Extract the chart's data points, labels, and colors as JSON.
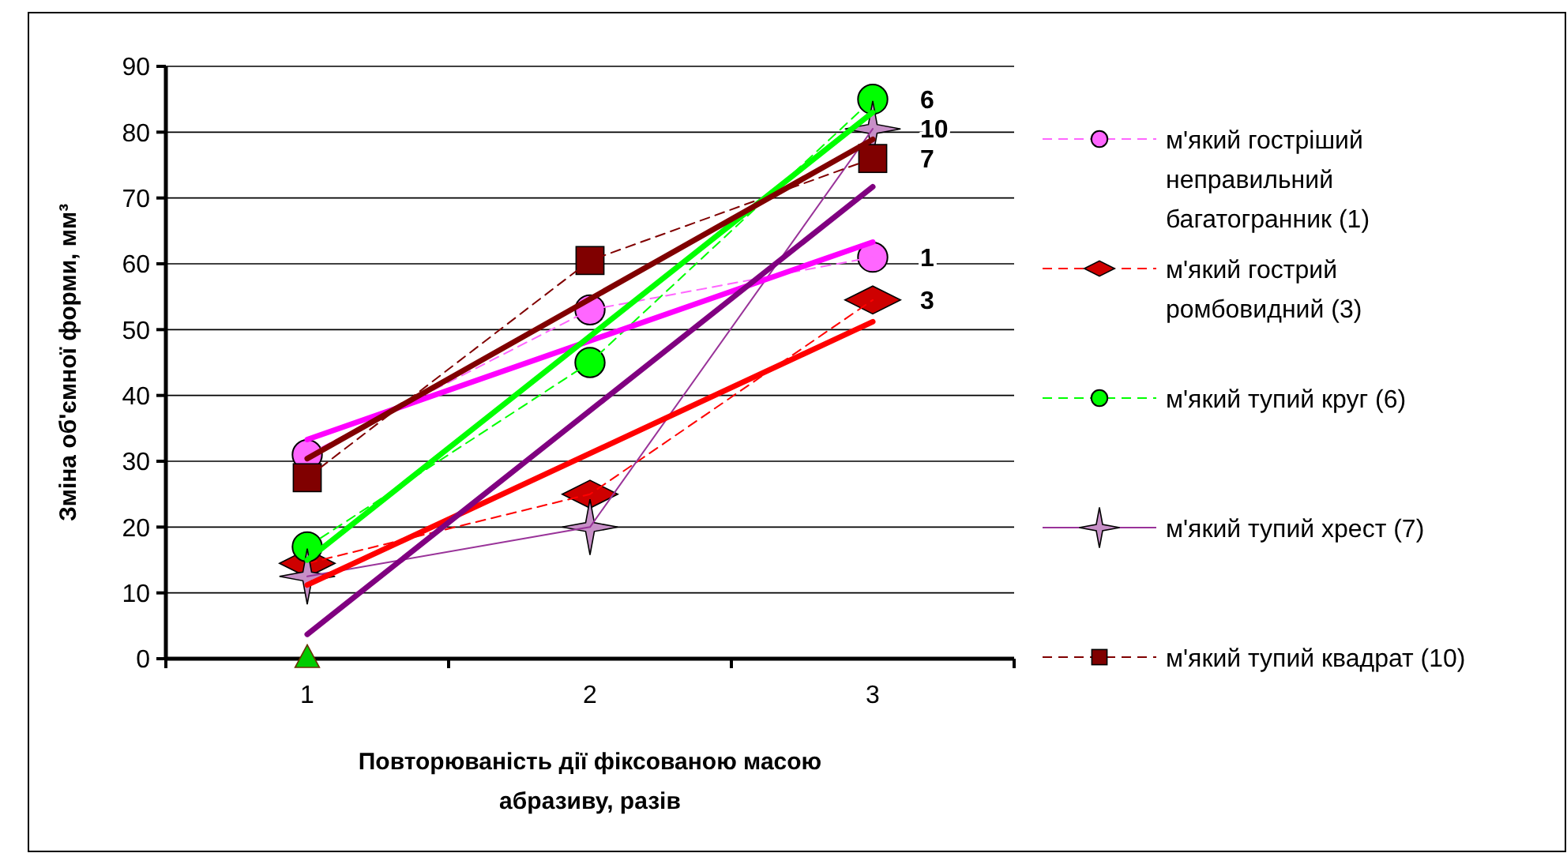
{
  "chart_data": {
    "type": "line",
    "ylabel": "Зміна об'ємної форми, мм³",
    "xlabel": "Повторюваність дії фіксованою масою абразиву, разів",
    "categories": [
      "1",
      "2",
      "3"
    ],
    "ylim": [
      0,
      90
    ],
    "yticks": [
      0,
      10,
      20,
      30,
      40,
      50,
      60,
      70,
      80,
      90
    ],
    "grid": "y",
    "legend": "right",
    "series": [
      {
        "name": "м'який гостріший неправильний багатогранник (1)",
        "color": "#ff66ff",
        "values": [
          31,
          53,
          61
        ],
        "marker": "circle",
        "line_style": "dashed"
      },
      {
        "name": "м'який гострий ромбовидний (3)",
        "color": "#ff0000",
        "values": [
          14.5,
          25,
          54.5
        ],
        "marker": "diamond",
        "line_style": "dashed"
      },
      {
        "name": "м'який тупий круг (6)",
        "color": "#00ff00",
        "values": [
          17,
          45,
          85
        ],
        "marker": "circle",
        "line_style": "dashed"
      },
      {
        "name": "м'який тупий хрест (7)",
        "color": "#993399",
        "values": [
          12.5,
          20,
          80.5
        ],
        "marker": "star",
        "line_style": "solid"
      },
      {
        "name": "м'який тупий квадрат (10)",
        "color": "#800000",
        "values": [
          27.5,
          60.5,
          76
        ],
        "marker": "square",
        "line_style": "dashed"
      },
      {
        "type": "scatter",
        "color": "#00cc00",
        "values": [
          0,
          null,
          null
        ],
        "marker": "triangle"
      },
      {
        "type": "line",
        "x": [
          "1",
          "3"
        ],
        "color": "#ff00ff",
        "values": [
          33.3,
          63.3
        ],
        "marker": "none",
        "line_style": "solid"
      },
      {
        "type": "line",
        "x": [
          "1",
          "3"
        ],
        "color": "#ff0000",
        "values": [
          11.2,
          51.2
        ],
        "marker": "none",
        "line_style": "solid"
      },
      {
        "type": "line",
        "x": [
          "1",
          "3"
        ],
        "color": "#00ff00",
        "values": [
          15,
          83
        ],
        "marker": "none",
        "line_style": "solid"
      },
      {
        "type": "line",
        "x": [
          "1",
          "3"
        ],
        "color": "#800080",
        "values": [
          3.7,
          71.7
        ],
        "marker": "none",
        "line_style": "solid"
      },
      {
        "type": "line",
        "x": [
          "1",
          "3"
        ],
        "color": "#800000",
        "values": [
          30.4,
          78.9
        ],
        "marker": "none",
        "line_style": "solid"
      }
    ],
    "annotations": [
      {
        "text": "6",
        "x": "3",
        "y": 85
      },
      {
        "text": "10",
        "x": "3",
        "y": 80.5
      },
      {
        "text": "7",
        "x": "3",
        "y": 76
      },
      {
        "text": "1",
        "x": "3",
        "y": 61
      },
      {
        "text": "3",
        "x": "3",
        "y": 54.5
      }
    ]
  }
}
